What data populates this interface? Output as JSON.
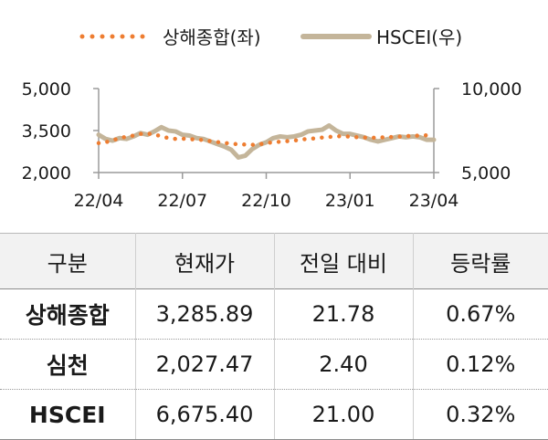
{
  "chart_data": {
    "type": "line",
    "legend": [
      {
        "name": "상해종합(좌)",
        "color": "#ee7d31",
        "style": "dotted"
      },
      {
        "name": "HSCEI(우)",
        "color": "#c4b59a",
        "style": "solid"
      }
    ],
    "legend_position": "top",
    "x_ticks": [
      "22/04",
      "22/07",
      "22/10",
      "23/01",
      "23/04"
    ],
    "y_left": {
      "ticks": [
        "2,000",
        "3,500",
        "5,000"
      ],
      "range": [
        2000,
        5000
      ]
    },
    "y_right": {
      "ticks": [
        "5,000",
        "10,000"
      ],
      "range": [
        5000,
        10000
      ]
    },
    "grid": false,
    "series": [
      {
        "name": "상해종합(좌)",
        "axis": "left",
        "x": [
          0,
          0.25,
          0.5,
          0.75,
          1,
          1.25,
          1.5,
          1.75,
          2,
          2.25,
          2.5,
          2.75,
          3,
          3.25,
          3.5,
          3.75,
          4,
          4.25,
          4.5,
          4.75,
          5,
          5.25,
          5.5,
          5.75,
          6,
          6.25,
          6.5,
          6.75,
          7,
          7.25,
          7.5,
          7.75,
          8,
          8.25,
          8.5,
          8.75,
          9,
          9.25,
          9.5,
          9.75,
          10,
          10.25,
          10.5,
          10.75,
          11,
          11.25,
          11.5,
          11.75,
          12
        ],
        "values": [
          3050,
          3080,
          3150,
          3230,
          3280,
          3320,
          3380,
          3390,
          3360,
          3290,
          3230,
          3200,
          3210,
          3190,
          3180,
          3160,
          3120,
          3090,
          3060,
          3030,
          3010,
          3000,
          2990,
          3010,
          3050,
          3080,
          3100,
          3120,
          3140,
          3180,
          3200,
          3220,
          3250,
          3270,
          3290,
          3300,
          3280,
          3260,
          3250,
          3240,
          3250,
          3260,
          3270,
          3280,
          3300,
          3310,
          3320,
          3330,
          3330
        ]
      },
      {
        "name": "HSCEI(우)",
        "axis": "right",
        "x": [
          0,
          0.25,
          0.5,
          0.75,
          1,
          1.25,
          1.5,
          1.75,
          2,
          2.25,
          2.5,
          2.75,
          3,
          3.25,
          3.5,
          3.75,
          4,
          4.25,
          4.5,
          4.75,
          5,
          5.25,
          5.5,
          5.75,
          6,
          6.25,
          6.5,
          6.75,
          7,
          7.25,
          7.5,
          7.75,
          8,
          8.25,
          8.5,
          8.75,
          9,
          9.25,
          9.5,
          9.75,
          10,
          10.25,
          10.5,
          10.75,
          11,
          11.25,
          11.5,
          11.75,
          12
        ],
        "values": [
          7250,
          7000,
          6900,
          7050,
          7000,
          7150,
          7350,
          7250,
          7450,
          7700,
          7500,
          7450,
          7250,
          7200,
          7050,
          7000,
          6850,
          6700,
          6550,
          6350,
          5900,
          6000,
          6400,
          6650,
          6800,
          7050,
          7150,
          7100,
          7150,
          7250,
          7450,
          7500,
          7550,
          7800,
          7500,
          7300,
          7300,
          7200,
          7100,
          6950,
          6850,
          6950,
          7050,
          7150,
          7100,
          7150,
          7100,
          6950,
          6950
        ]
      }
    ]
  },
  "table": {
    "headers": [
      "구분",
      "현재가",
      "전일 대비",
      "등락률"
    ],
    "rows": [
      [
        "상해종합",
        "3,285.89",
        "21.78",
        "0.67%"
      ],
      [
        "심천",
        "2,027.47",
        "2.40",
        "0.12%"
      ],
      [
        "HSCEI",
        "6,675.40",
        "21.00",
        "0.32%"
      ]
    ]
  }
}
